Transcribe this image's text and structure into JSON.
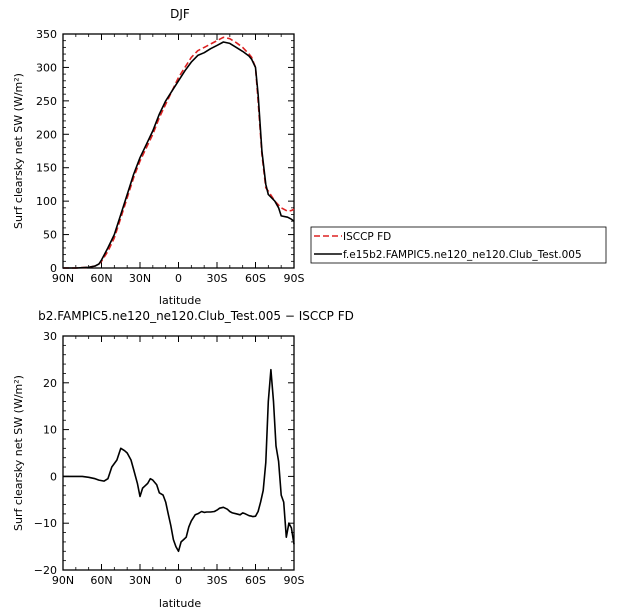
{
  "chart_data": [
    {
      "type": "line",
      "title": "DJF",
      "xlabel": "latitude",
      "ylabel": "Surf clearsky net SW (W/m²)",
      "xlim": [
        90,
        -90
      ],
      "ylim": [
        0,
        350
      ],
      "x_ticks": [
        90,
        60,
        30,
        0,
        -30,
        -60,
        -90
      ],
      "x_tick_labels": [
        "90N",
        "60N",
        "30N",
        "0",
        "30S",
        "60S",
        "90S"
      ],
      "y_ticks": [
        0,
        50,
        100,
        150,
        200,
        250,
        300,
        350
      ],
      "y_tick_labels": [
        "0",
        "50",
        "100",
        "150",
        "200",
        "250",
        "300",
        "350"
      ],
      "legend": "right",
      "series": [
        {
          "name": "ISCCP FD",
          "color": "#dd2222",
          "dash": "dashed",
          "x": [
            90,
            80,
            70,
            65,
            62,
            60,
            55,
            50,
            45,
            40,
            35,
            30,
            25,
            20,
            15,
            10,
            5,
            0,
            -5,
            -10,
            -15,
            -20,
            -25,
            -30,
            -35,
            -40,
            -45,
            -50,
            -55,
            -57,
            -60,
            -62,
            -65,
            -68,
            -70,
            -75,
            -80,
            -85,
            -88,
            -90
          ],
          "y": [
            0,
            0,
            1,
            3,
            6,
            10,
            25,
            45,
            75,
            105,
            135,
            160,
            180,
            200,
            225,
            245,
            265,
            285,
            300,
            315,
            325,
            330,
            335,
            340,
            345,
            343,
            337,
            330,
            320,
            315,
            300,
            250,
            170,
            120,
            115,
            100,
            90,
            85,
            86,
            88
          ]
        },
        {
          "name": "f.e15b2.FAMPIC5.ne120_ne120.Club_Test.005",
          "color": "#000000",
          "dash": "solid",
          "x": [
            90,
            80,
            70,
            65,
            62,
            60,
            55,
            50,
            45,
            40,
            35,
            30,
            25,
            20,
            15,
            10,
            5,
            0,
            -5,
            -10,
            -15,
            -20,
            -25,
            -30,
            -35,
            -40,
            -45,
            -50,
            -55,
            -57,
            -60,
            -62,
            -65,
            -68,
            -70,
            -75,
            -78,
            -80,
            -85,
            -88,
            -90
          ],
          "y": [
            0,
            0,
            1,
            3,
            6,
            12,
            30,
            50,
            80,
            110,
            140,
            165,
            185,
            205,
            230,
            250,
            265,
            280,
            295,
            308,
            318,
            322,
            328,
            333,
            338,
            336,
            330,
            324,
            317,
            312,
            300,
            260,
            175,
            125,
            110,
            100,
            90,
            78,
            76,
            73,
            70
          ]
        }
      ]
    },
    {
      "type": "line",
      "title": "b2.FAMPIC5.ne120_ne120.Club_Test.005 − ISCCP FD",
      "xlabel": "latitude",
      "ylabel": "Surf clearsky net SW (W/m²)",
      "xlim": [
        90,
        -90
      ],
      "ylim": [
        -20,
        30
      ],
      "x_ticks": [
        90,
        60,
        30,
        0,
        -30,
        -60,
        -90
      ],
      "x_tick_labels": [
        "90N",
        "60N",
        "30N",
        "0",
        "30S",
        "60S",
        "90S"
      ],
      "y_ticks": [
        -20,
        -10,
        0,
        10,
        20,
        30
      ],
      "y_tick_labels": [
        "−20",
        "−10",
        "0",
        "10",
        "20",
        "30"
      ],
      "series": [
        {
          "color": "#000000",
          "dash": "solid",
          "x": [
            90,
            80,
            75,
            70,
            65,
            62,
            58,
            55,
            52,
            48,
            45,
            42,
            40,
            37,
            35,
            32,
            30,
            28,
            26,
            24,
            22,
            20,
            17,
            15,
            12,
            10,
            8,
            6,
            4,
            2,
            0,
            -2,
            -4,
            -6,
            -8,
            -10,
            -13,
            -15,
            -18,
            -20,
            -22,
            -25,
            -28,
            -30,
            -32,
            -35,
            -38,
            -40,
            -42,
            -45,
            -48,
            -50,
            -52,
            -55,
            -57,
            -58,
            -60,
            -62,
            -64,
            -66,
            -68,
            -70,
            -72,
            -74,
            -76,
            -78,
            -80,
            -82,
            -84,
            -86,
            -88,
            -90
          ],
          "y": [
            0,
            0,
            0,
            -0.2,
            -0.5,
            -0.8,
            -1,
            -0.5,
            2,
            3.5,
            6,
            5.5,
            5,
            3.5,
            1.5,
            -1.5,
            -4.3,
            -2.5,
            -2,
            -1.5,
            -0.5,
            -0.8,
            -1.8,
            -3.5,
            -4,
            -5.5,
            -8,
            -10.5,
            -13.5,
            -15,
            -16,
            -14,
            -13.5,
            -13,
            -10.8,
            -9.5,
            -8.2,
            -8,
            -7.5,
            -7.7,
            -7.6,
            -7.6,
            -7.5,
            -7.2,
            -6.8,
            -6.6,
            -7,
            -7.5,
            -7.8,
            -8,
            -8.2,
            -7.8,
            -8,
            -8.4,
            -8.5,
            -8.6,
            -8.5,
            -7.5,
            -5.5,
            -3,
            3,
            16,
            22.8,
            16,
            6.5,
            3.2,
            -4,
            -5.5,
            -13,
            -10,
            -11,
            -14.5
          ]
        }
      ]
    }
  ]
}
